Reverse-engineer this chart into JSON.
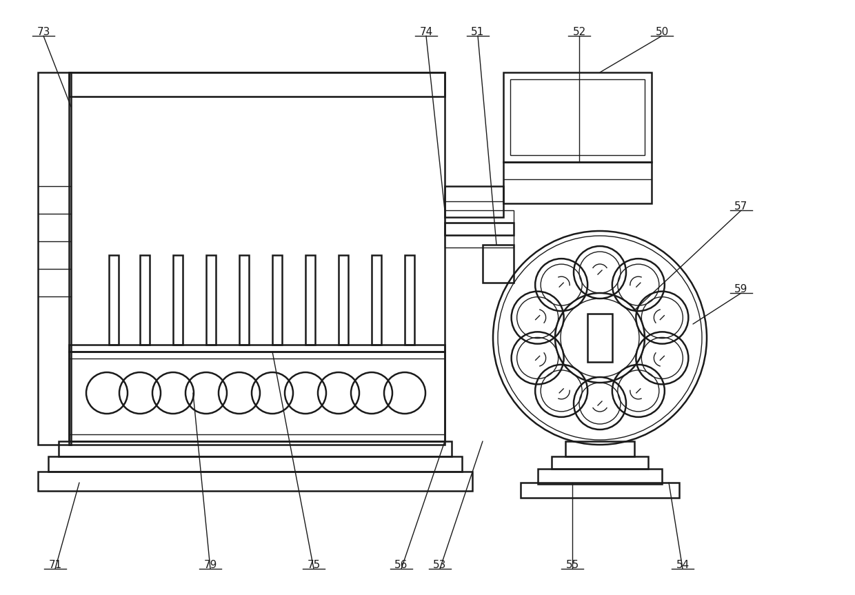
{
  "bg_color": "#ffffff",
  "lc": "#1a1a1a",
  "lw": 1.8,
  "tlw": 1.0,
  "fig_w": 12.4,
  "fig_h": 8.63,
  "dpi": 100
}
